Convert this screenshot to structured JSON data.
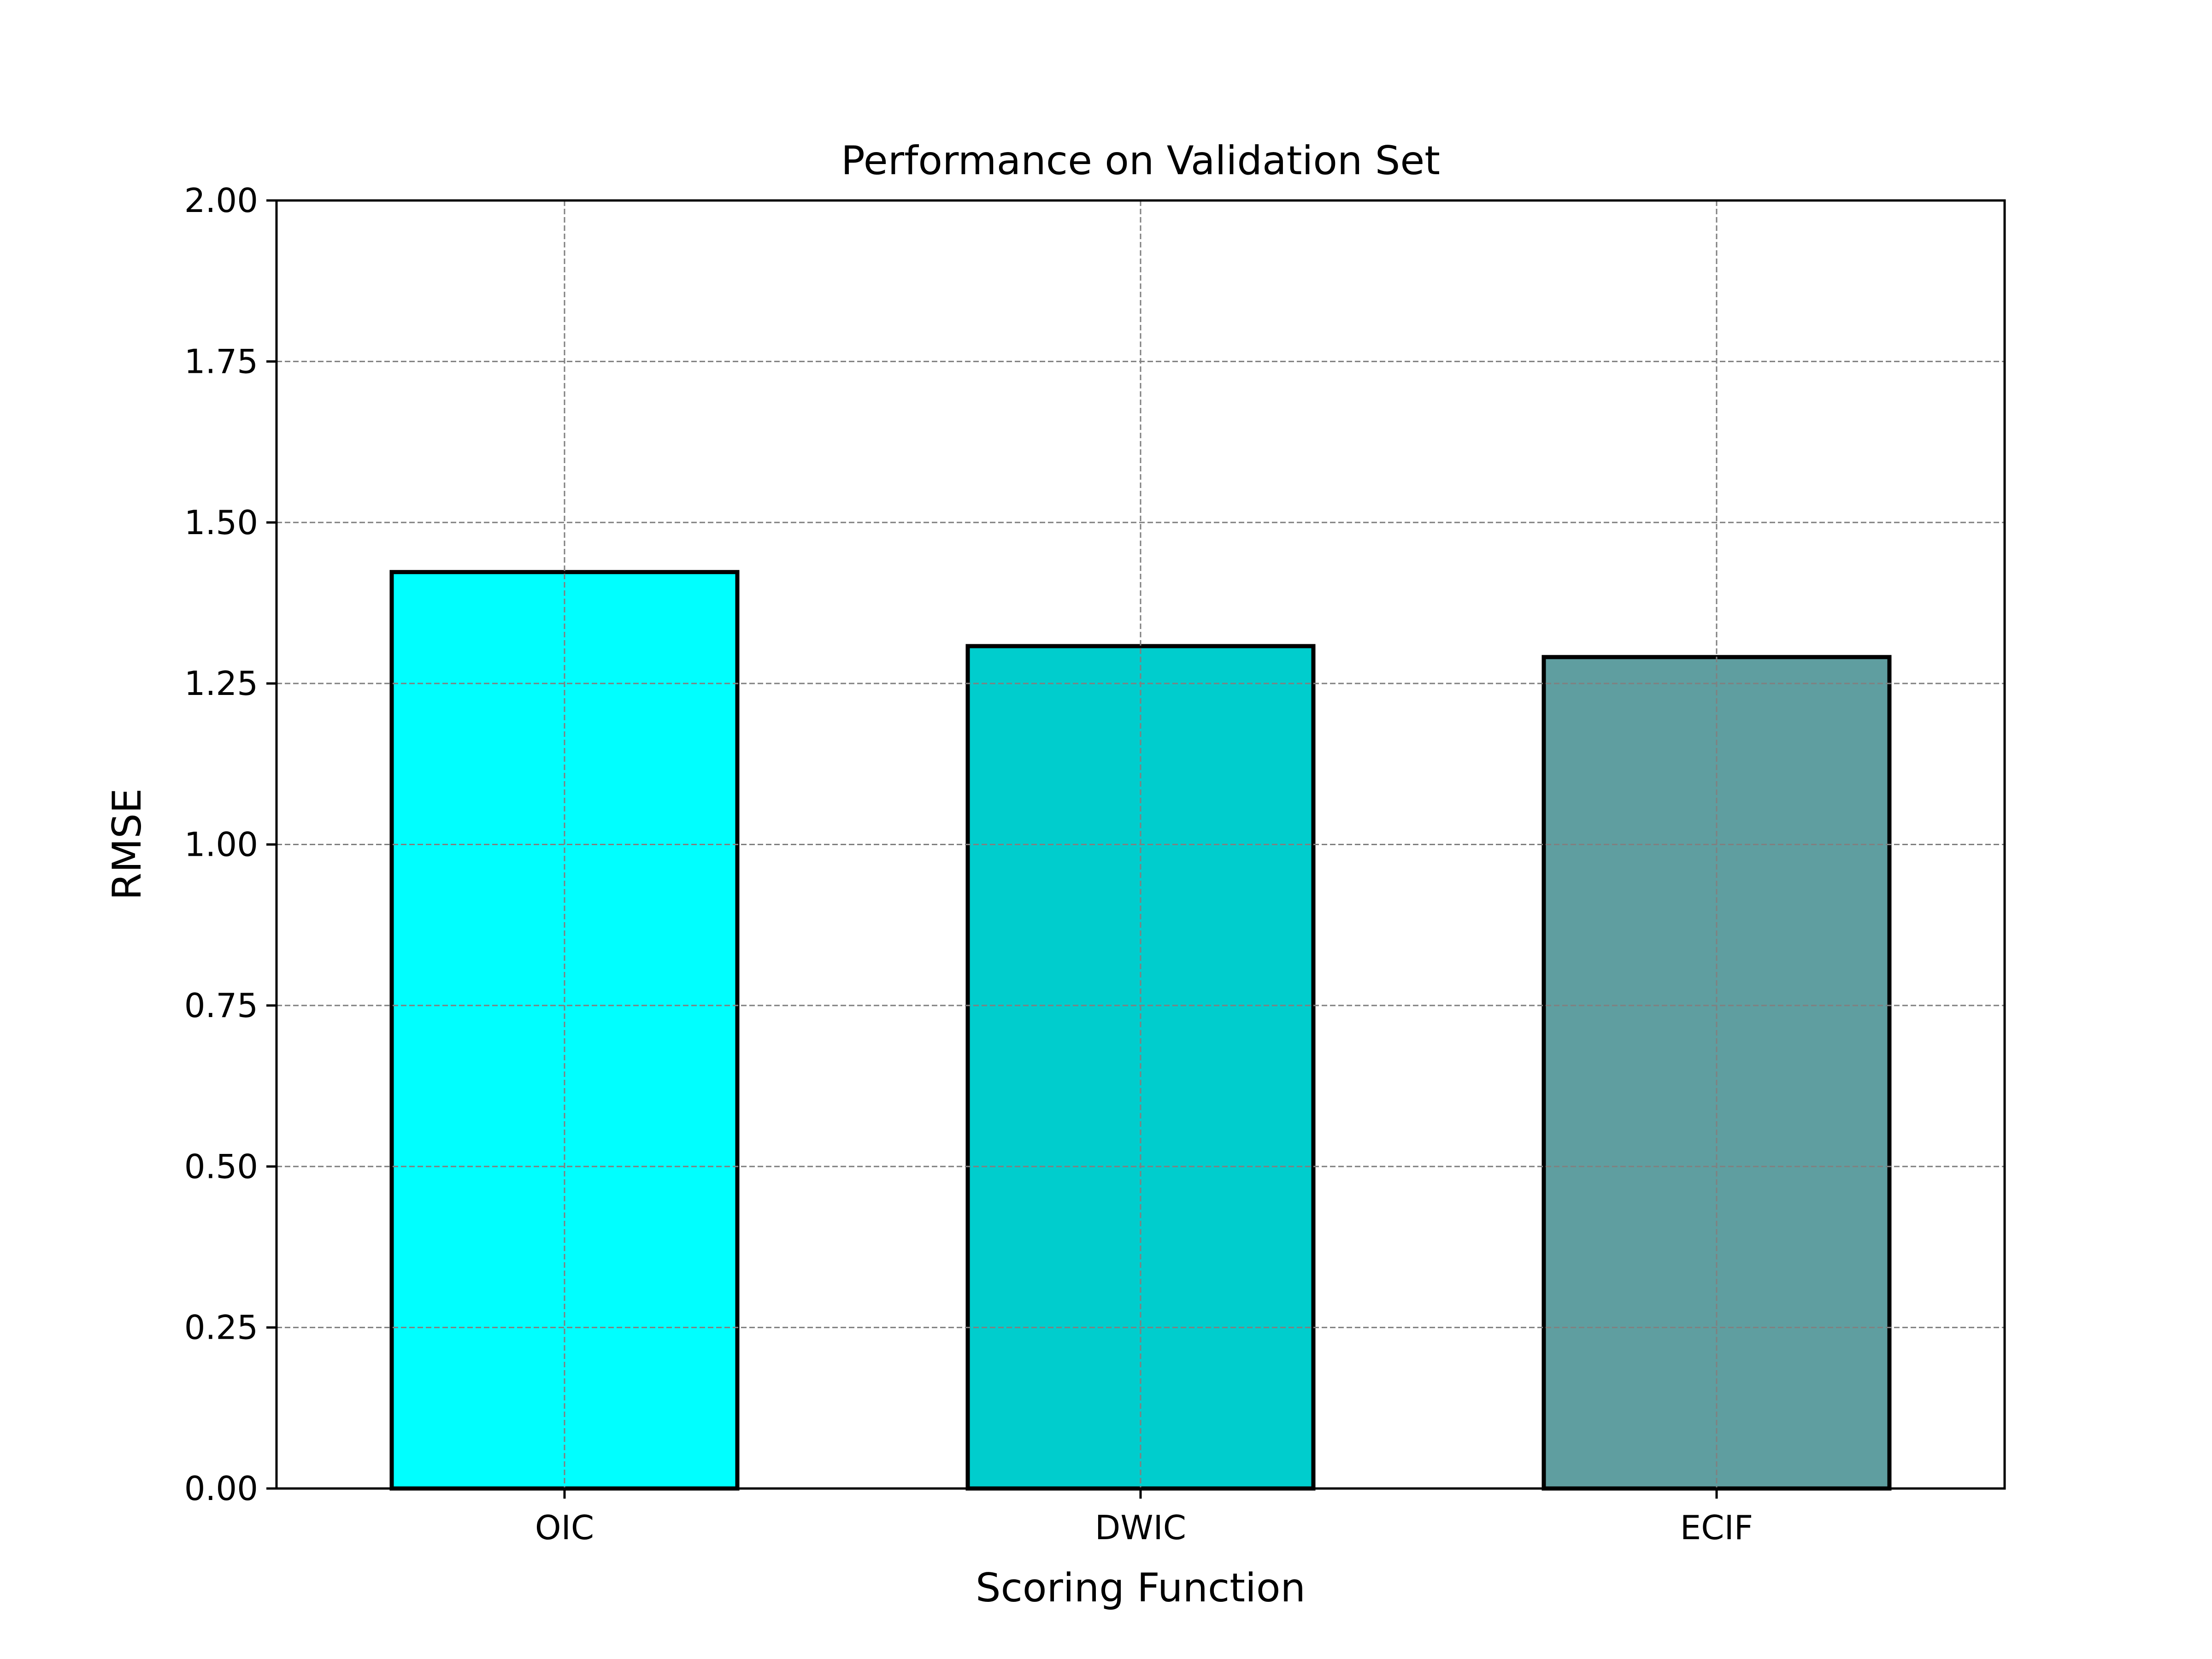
{
  "chart_data": {
    "type": "bar",
    "title": "Performance on Validation Set",
    "xlabel": "Scoring Function",
    "ylabel": "RMSE",
    "categories": [
      "OIC",
      "DWIC",
      "ECIF"
    ],
    "values": [
      1.423,
      1.308,
      1.291
    ],
    "colors": [
      "#00ffff",
      "#00cdcd",
      "#5f9ea0"
    ],
    "edge_color": "#000000",
    "ylim": [
      0,
      2.0
    ],
    "yticks": [
      "0.00",
      "0.25",
      "0.50",
      "0.75",
      "1.00",
      "1.25",
      "1.50",
      "1.75",
      "2.00"
    ],
    "grid": true
  }
}
